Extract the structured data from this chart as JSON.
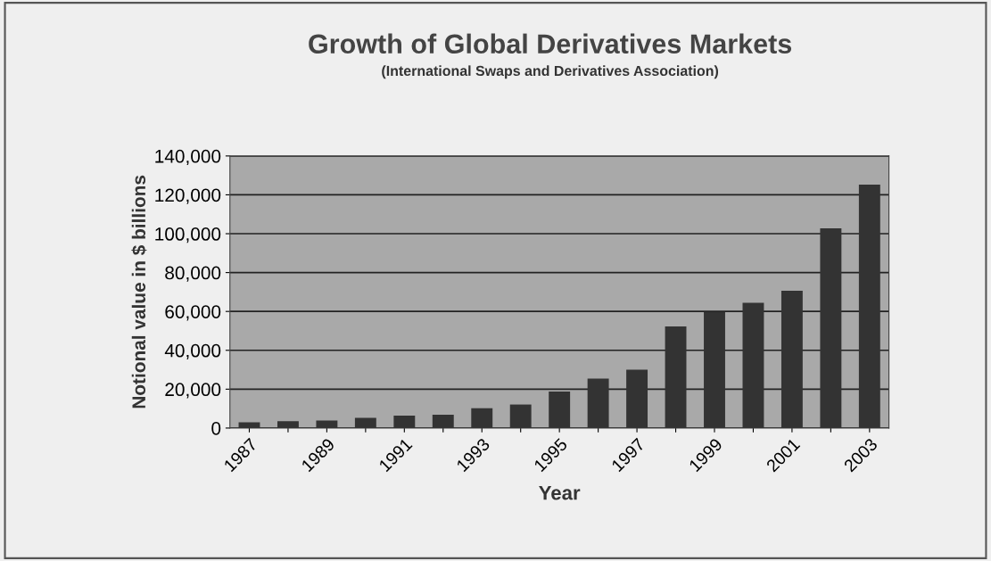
{
  "chart_data": {
    "type": "bar",
    "title": "Growth of Global Derivatives Markets",
    "subtitle": "(International Swaps and Derivatives Association)",
    "xlabel": "Year",
    "ylabel": "Notional value in $ billions",
    "categories": [
      "1987",
      null,
      "1989",
      null,
      "1991",
      null,
      "1993",
      null,
      "1995",
      null,
      "1997",
      null,
      "1999",
      null,
      "2001",
      null,
      "2003"
    ],
    "values": [
      2900,
      3500,
      3900,
      5300,
      6400,
      6800,
      10200,
      12100,
      18800,
      25400,
      30000,
      52300,
      59700,
      64500,
      70600,
      102800,
      125200
    ],
    "color": "#333333",
    "ylim": [
      0,
      140000
    ],
    "yticks": [
      {
        "value": 0,
        "label": "0"
      },
      {
        "value": 20000,
        "label": "20,000"
      },
      {
        "value": 40000,
        "label": "40,000"
      },
      {
        "value": 60000,
        "label": "60,000"
      },
      {
        "value": 80000,
        "label": "80,000"
      },
      {
        "value": 100000,
        "label": "100,000"
      },
      {
        "value": 120000,
        "label": "120,000"
      },
      {
        "value": 140000,
        "label": "140,000"
      }
    ],
    "grid": "y"
  }
}
